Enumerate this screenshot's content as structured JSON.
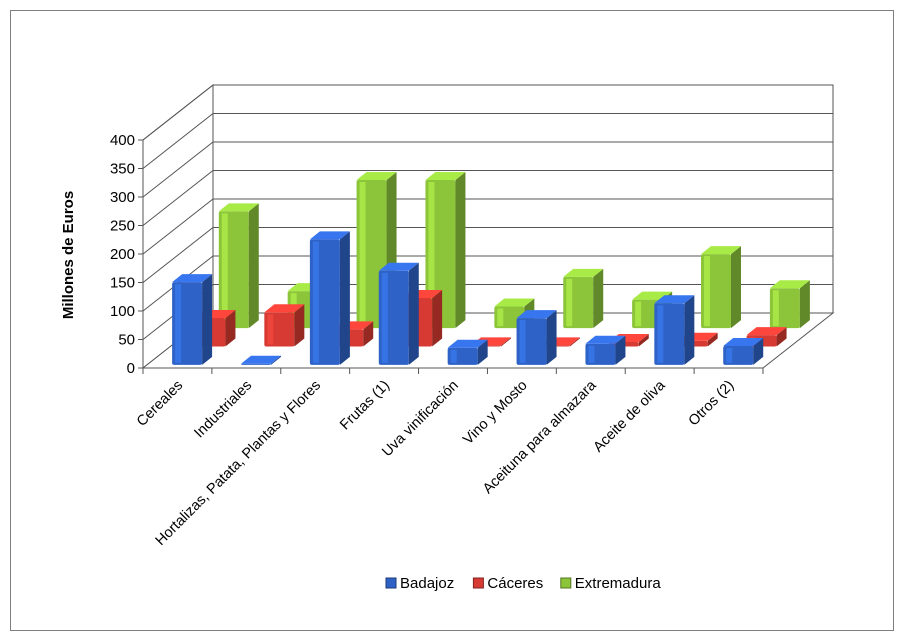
{
  "chart_data": {
    "type": "bar",
    "three_d": true,
    "ylabel": "Millones de Euros",
    "ylim": [
      0,
      400
    ],
    "yticks": [
      "0",
      "50",
      "100",
      "150",
      "200",
      "250",
      "300",
      "350",
      "400"
    ],
    "grid": true,
    "legend_position": "bottom",
    "categories": [
      "Cereales",
      "Industriales",
      "Hortalizas, Patata, Plantas y Flores",
      "Frutas (1)",
      "Uva vinificación",
      "Vino y Mosto",
      "Aceituna para almazara",
      "Aceite de oliva",
      "Otros (2)"
    ],
    "series": [
      {
        "name": "Badajoz",
        "color": "#2e62c6",
        "values": [
          145,
          2,
          220,
          165,
          30,
          82,
          37,
          108,
          33
        ]
      },
      {
        "name": "Cáceres",
        "color": "#d73a32",
        "values": [
          50,
          60,
          30,
          85,
          2,
          2,
          8,
          10,
          20
        ]
      },
      {
        "name": "Extremadura",
        "color": "#8cc43a",
        "values": [
          205,
          65,
          260,
          260,
          38,
          90,
          50,
          130,
          70
        ]
      }
    ]
  }
}
